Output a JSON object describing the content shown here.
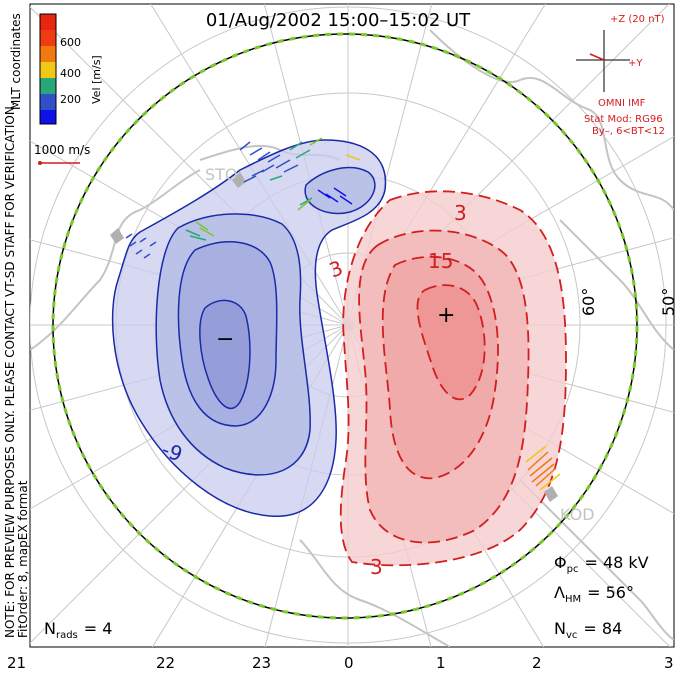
{
  "title": "01/Aug/2002 15:00–15:02 UT",
  "colorbar": {
    "ticks": [
      "600",
      "400",
      "200"
    ],
    "label": "Vel [m/s]",
    "colors": [
      "#e8260f",
      "#f07a10",
      "#f0c818",
      "#78c828",
      "#28a878",
      "#3050c8",
      "#1010e8"
    ]
  },
  "side_notes": {
    "mlt": "MLT coordinates",
    "note": "NOTE: FOR PREVIEW PURPOSES ONLY. PLEASE CONTACT VT-SD STAFF FOR VERIFICATION.",
    "fit": "FitOrder: 8, mapEX format"
  },
  "scale_label": "1000 m/s",
  "imf": {
    "z": "+Z (20 nT)",
    "y": "+Y",
    "model": "OMNI IMF",
    "stat": "Stat Mod: RG96",
    "cond": "By–, 6<BT<12"
  },
  "radars": [
    "STO",
    "KOD"
  ],
  "lat_labels": [
    "60°",
    "50°"
  ],
  "contour_labels": {
    "neg": "-9",
    "pos_a": "3",
    "pos_b": "15",
    "pos_c": "3",
    "pos_d": "3"
  },
  "minus_marker": "−",
  "plus_marker": "+",
  "stats": {
    "phi_sym": "Φ",
    "phi_sub": "pc",
    "phi_val": "= 48 kV",
    "lam_sym": "Λ",
    "lam_sub": "HM",
    "lam_val": "= 56°",
    "nvc_sym": "N",
    "nvc_sub": "vc",
    "nvc_val": "= 84",
    "nrads_sym": "N",
    "nrads_sub": "rads",
    "nrads_val": "= 4"
  },
  "mlt_ticks": [
    "21",
    "22",
    "23",
    "0",
    "1",
    "2",
    "3"
  ],
  "colors": {
    "negative_fill": "#c8ccec",
    "negative_line": "#1a2aa8",
    "positive_fill": "#f4cccc",
    "positive_line": "#d21e1e",
    "coast": "#c4c4c4",
    "imf_text": "#d21e1e"
  }
}
